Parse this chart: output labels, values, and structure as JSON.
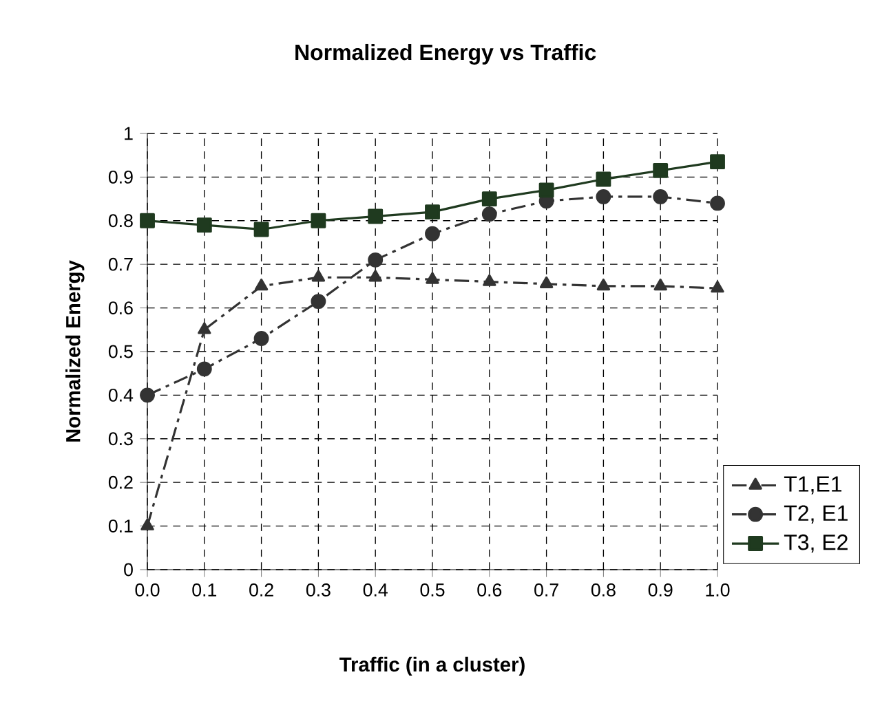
{
  "chart_data": {
    "type": "line",
    "title": "Normalized Energy vs Traffic",
    "xlabel": "Traffic (in a cluster)",
    "ylabel": "Normalized Energy",
    "x": [
      0,
      0.1,
      0.2,
      0.3,
      0.4,
      0.5,
      0.6,
      0.7,
      0.8,
      0.9,
      1.0
    ],
    "xlim": [
      0,
      1.0
    ],
    "xticks": [
      {
        "value": 0,
        "label": "0.0"
      },
      {
        "value": 0.1,
        "label": "0.1"
      },
      {
        "value": 0.2,
        "label": "0.2"
      },
      {
        "value": 0.3,
        "label": "0.3"
      },
      {
        "value": 0.4,
        "label": "0.4"
      },
      {
        "value": 0.5,
        "label": "0.5"
      },
      {
        "value": 0.6,
        "label": "0.6"
      },
      {
        "value": 0.7,
        "label": "0.7"
      },
      {
        "value": 0.8,
        "label": "0.8"
      },
      {
        "value": 0.9,
        "label": "0.9"
      },
      {
        "value": 1.0,
        "label": "1.0"
      }
    ],
    "ylim": [
      0,
      1
    ],
    "yticks": [
      0,
      0.1,
      0.2,
      0.3,
      0.4,
      0.5,
      0.6,
      0.7,
      0.8,
      0.9,
      1
    ],
    "grid": true,
    "legend": "bottom right",
    "series": [
      {
        "name": "T1,E1",
        "color": "#333333",
        "marker": "triangle",
        "line_style": "dashed",
        "values": [
          0.1,
          0.55,
          0.65,
          0.67,
          0.67,
          0.665,
          0.66,
          0.655,
          0.65,
          0.65,
          0.645
        ]
      },
      {
        "name": "T2, E1",
        "color": "#333333",
        "marker": "circle",
        "line_style": "dashed",
        "values": [
          0.4,
          0.46,
          0.53,
          0.615,
          0.71,
          0.77,
          0.815,
          0.845,
          0.855,
          0.855,
          0.84
        ]
      },
      {
        "name": "T3, E2",
        "color": "#1f3a1f",
        "marker": "square",
        "line_style": "solid",
        "values": [
          0.8,
          0.79,
          0.78,
          0.8,
          0.81,
          0.82,
          0.85,
          0.87,
          0.895,
          0.915,
          0.935
        ]
      }
    ]
  }
}
